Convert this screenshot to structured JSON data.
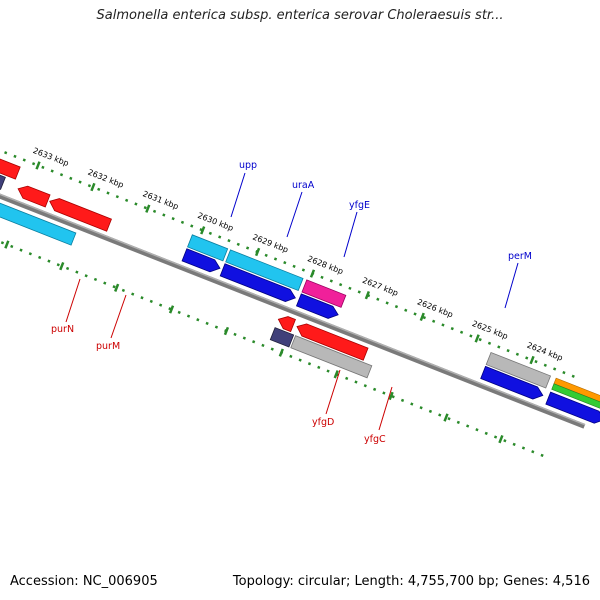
{
  "header": {
    "title": "Salmonella enterica subsp. enterica serovar Choleraesuis str..."
  },
  "footer": {
    "accession": "Accession: NC_006905",
    "summary": "Topology: circular; Length: 4,755,700 bp; Genes: 4,516"
  },
  "scale_labels": [
    "2633 kbp",
    "2632 kbp",
    "2631 kbp",
    "2630 kbp",
    "2629 kbp",
    "2628 kbp",
    "2627 kbp",
    "2626 kbp",
    "2625 kbp",
    "2624 kbp"
  ],
  "genes": {
    "upp": "upp",
    "uraA": "uraA",
    "yfgE": "yfgE",
    "perM": "perM",
    "purN": "purN",
    "purM": "purM",
    "yfgD": "yfgD",
    "yfgC": "yfgC"
  },
  "colors": {
    "red": "#ff1a1a",
    "cyan": "#21c4ef",
    "blue": "#1010e0",
    "navy": "#40407a",
    "magenta": "#f0209a",
    "gray": "#b8b8b8",
    "orange": "#ff9900",
    "green": "#33cc33",
    "backbone": "#7a7a7a",
    "ticks": "#2a8a2a",
    "label_blue": "#0000cc",
    "label_red": "#cc0000"
  }
}
